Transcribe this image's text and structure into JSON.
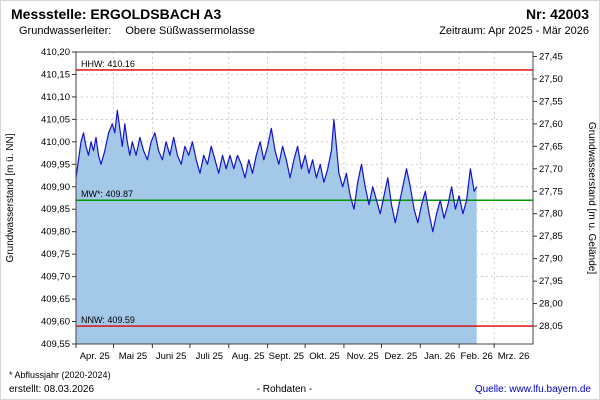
{
  "header": {
    "station": "Messstelle: ERGOLDSBACH A3",
    "number": "Nr: 42003",
    "aquifer_label": "Grundwasserleiter:",
    "aquifer_value": "Obere Süßwassermolasse",
    "period": "Zeitraum: Apr 2025 - Mär 2026"
  },
  "footer": {
    "note": "* Abflussjahr (2020-2024)",
    "created": "erstellt:  08.03.2026",
    "center": "- Rohdaten -",
    "source": "Quelle: www.lfu.bayern.de"
  },
  "chart_data": {
    "type": "line",
    "ylabel_left": "Grundwasserstand [m ü. NN]",
    "ylabel_right": "Grundwasserstand [m u. Gelände]",
    "ylim_left": [
      409.55,
      410.2
    ],
    "ground_level_m_nn": 437.64,
    "x_days_total": 365,
    "month_start_days": [
      0,
      30,
      61,
      91,
      122,
      153,
      183,
      214,
      244,
      275,
      306,
      334
    ],
    "x_tick_labels": [
      "Apr. 25",
      "Mai 25",
      "Juni 25",
      "Juli 25",
      "Aug. 25",
      "Sept. 25",
      "Okt. 25",
      "Nov. 25",
      "Dez. 25",
      "Jan. 26",
      "Feb. 26",
      "Mrz. 26"
    ],
    "y_left_ticks": [
      "410,20",
      "410,15",
      "410,10",
      "410,05",
      "410,00",
      "409,95",
      "409,90",
      "409,85",
      "409,80",
      "409,75",
      "409,70",
      "409,65",
      "409,60",
      "409,55"
    ],
    "y_right_ticks": [
      "27,45",
      "27,50",
      "27,55",
      "27,60",
      "27,65",
      "27,70",
      "27,75",
      "27,80",
      "27,85",
      "27,90",
      "27,95",
      "28,00",
      "28,05"
    ],
    "grid": true,
    "reference_lines": [
      {
        "name": "HHW",
        "label": "HHW: 410.16",
        "value": 410.16,
        "color": "#dd0000"
      },
      {
        "name": "MW",
        "label": "MW*: 409.87",
        "value": 409.87,
        "color": "#009900"
      },
      {
        "name": "NNW",
        "label": "NNW: 409.59",
        "value": 409.59,
        "color": "#dd0000"
      }
    ],
    "series": [
      {
        "name": "Grundwasserstand Rohdaten",
        "color": "#1414cc",
        "fill_color": "#a4c8e8",
        "points": [
          [
            0,
            409.92
          ],
          [
            2,
            409.96
          ],
          [
            4,
            410.0
          ],
          [
            6,
            410.02
          ],
          [
            8,
            409.99
          ],
          [
            10,
            409.97
          ],
          [
            12,
            410.0
          ],
          [
            14,
            409.98
          ],
          [
            16,
            410.01
          ],
          [
            18,
            409.97
          ],
          [
            20,
            409.95
          ],
          [
            23,
            409.98
          ],
          [
            26,
            410.02
          ],
          [
            29,
            410.04
          ],
          [
            31,
            410.02
          ],
          [
            33,
            410.07
          ],
          [
            35,
            410.03
          ],
          [
            37,
            409.99
          ],
          [
            39,
            410.04
          ],
          [
            41,
            410.0
          ],
          [
            43,
            409.97
          ],
          [
            45,
            410.0
          ],
          [
            48,
            409.97
          ],
          [
            51,
            410.01
          ],
          [
            54,
            409.98
          ],
          [
            57,
            409.96
          ],
          [
            60,
            410.0
          ],
          [
            63,
            410.02
          ],
          [
            66,
            409.98
          ],
          [
            69,
            409.96
          ],
          [
            72,
            410.0
          ],
          [
            75,
            409.97
          ],
          [
            78,
            410.01
          ],
          [
            81,
            409.97
          ],
          [
            84,
            409.95
          ],
          [
            87,
            409.99
          ],
          [
            90,
            409.97
          ],
          [
            93,
            410.0
          ],
          [
            96,
            409.96
          ],
          [
            99,
            409.93
          ],
          [
            102,
            409.97
          ],
          [
            105,
            409.95
          ],
          [
            108,
            409.99
          ],
          [
            111,
            409.96
          ],
          [
            114,
            409.93
          ],
          [
            117,
            409.97
          ],
          [
            120,
            409.94
          ],
          [
            123,
            409.97
          ],
          [
            126,
            409.94
          ],
          [
            129,
            409.97
          ],
          [
            132,
            409.95
          ],
          [
            135,
            409.92
          ],
          [
            138,
            409.96
          ],
          [
            141,
            409.93
          ],
          [
            144,
            409.97
          ],
          [
            147,
            410.0
          ],
          [
            150,
            409.96
          ],
          [
            153,
            409.99
          ],
          [
            156,
            410.03
          ],
          [
            159,
            409.98
          ],
          [
            162,
            409.95
          ],
          [
            165,
            409.99
          ],
          [
            168,
            409.96
          ],
          [
            171,
            409.92
          ],
          [
            174,
            409.96
          ],
          [
            177,
            409.99
          ],
          [
            180,
            409.94
          ],
          [
            183,
            409.97
          ],
          [
            186,
            409.93
          ],
          [
            189,
            409.96
          ],
          [
            192,
            409.92
          ],
          [
            195,
            409.95
          ],
          [
            198,
            409.91
          ],
          [
            201,
            409.94
          ],
          [
            204,
            409.98
          ],
          [
            206,
            410.05
          ],
          [
            208,
            409.99
          ],
          [
            210,
            409.93
          ],
          [
            213,
            409.9
          ],
          [
            216,
            409.93
          ],
          [
            219,
            409.88
          ],
          [
            222,
            409.85
          ],
          [
            225,
            409.91
          ],
          [
            228,
            409.95
          ],
          [
            231,
            409.9
          ],
          [
            234,
            409.86
          ],
          [
            237,
            409.9
          ],
          [
            240,
            409.87
          ],
          [
            243,
            409.84
          ],
          [
            246,
            409.88
          ],
          [
            249,
            409.92
          ],
          [
            252,
            409.86
          ],
          [
            255,
            409.82
          ],
          [
            258,
            409.86
          ],
          [
            261,
            409.9
          ],
          [
            264,
            409.94
          ],
          [
            267,
            409.9
          ],
          [
            270,
            409.85
          ],
          [
            273,
            409.82
          ],
          [
            276,
            409.86
          ],
          [
            279,
            409.89
          ],
          [
            282,
            409.84
          ],
          [
            285,
            409.8
          ],
          [
            288,
            409.84
          ],
          [
            291,
            409.87
          ],
          [
            294,
            409.83
          ],
          [
            297,
            409.86
          ],
          [
            300,
            409.9
          ],
          [
            303,
            409.85
          ],
          [
            306,
            409.88
          ],
          [
            309,
            409.84
          ],
          [
            312,
            409.87
          ],
          [
            315,
            409.94
          ],
          [
            318,
            409.89
          ],
          [
            320,
            409.9
          ]
        ]
      }
    ]
  }
}
